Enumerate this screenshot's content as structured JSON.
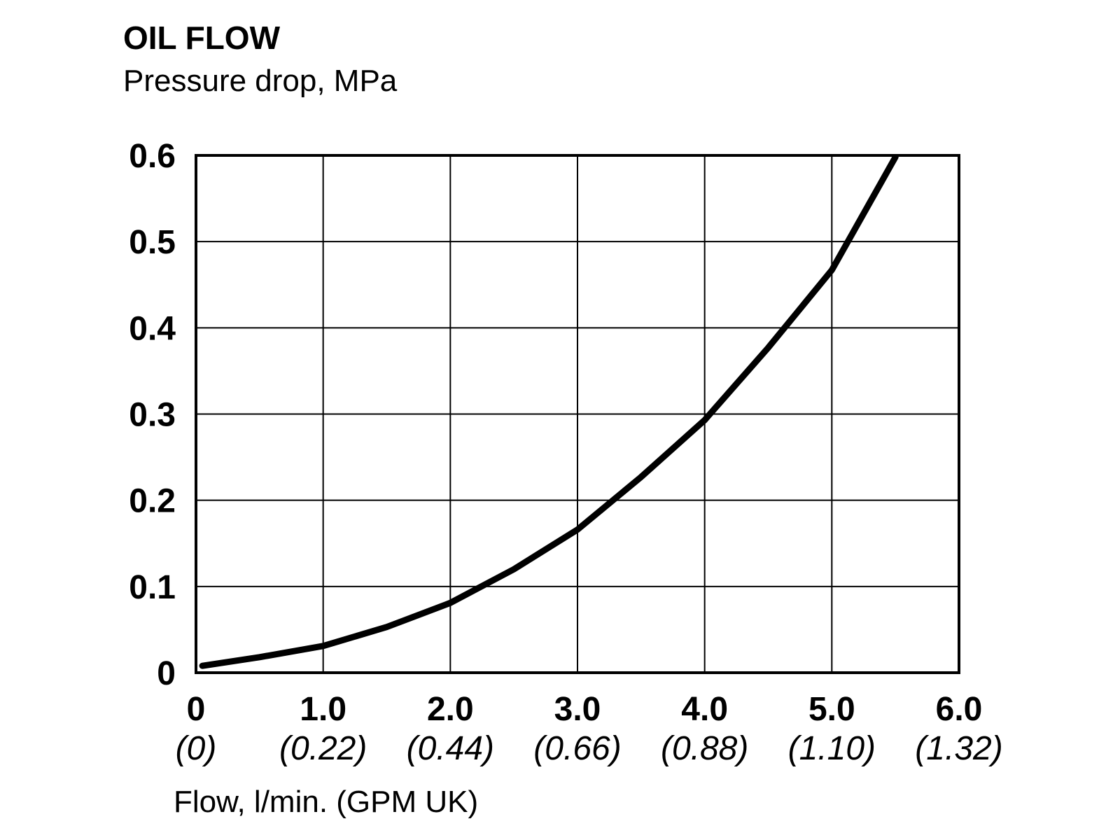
{
  "chart_data": {
    "type": "line",
    "title": "OIL FLOW",
    "subtitle": "Pressure drop, MPa",
    "x_label": "Flow, l/min. (GPM UK)",
    "x": [
      0.05,
      0.5,
      1.0,
      1.5,
      2.0,
      2.5,
      3.0,
      3.5,
      4.0,
      4.5,
      5.0,
      5.5
    ],
    "values": [
      0.008,
      0.018,
      0.031,
      0.053,
      0.081,
      0.12,
      0.166,
      0.227,
      0.293,
      0.377,
      0.467,
      0.598
    ],
    "color": "#000000",
    "xlim": [
      0,
      6
    ],
    "ylim": [
      0,
      0.6
    ],
    "xticks": [
      0,
      {
        "value": 1,
        "label": "1.0"
      },
      {
        "value": 2,
        "label": "2.0"
      },
      {
        "value": 3,
        "label": "3.0"
      },
      {
        "value": 4,
        "label": "4.0"
      },
      {
        "value": 5,
        "label": "5.0"
      },
      {
        "value": 6,
        "label": "6.0"
      }
    ],
    "xtick_sublabels": [
      "(0)",
      "(0.22)",
      "(0.44)",
      "(0.66)",
      "(0.88)",
      "(1.10)",
      "(1.32)"
    ],
    "yticks": [
      0,
      0.1,
      0.2,
      0.3,
      0.4,
      0.5,
      0.6
    ],
    "grid": true
  }
}
